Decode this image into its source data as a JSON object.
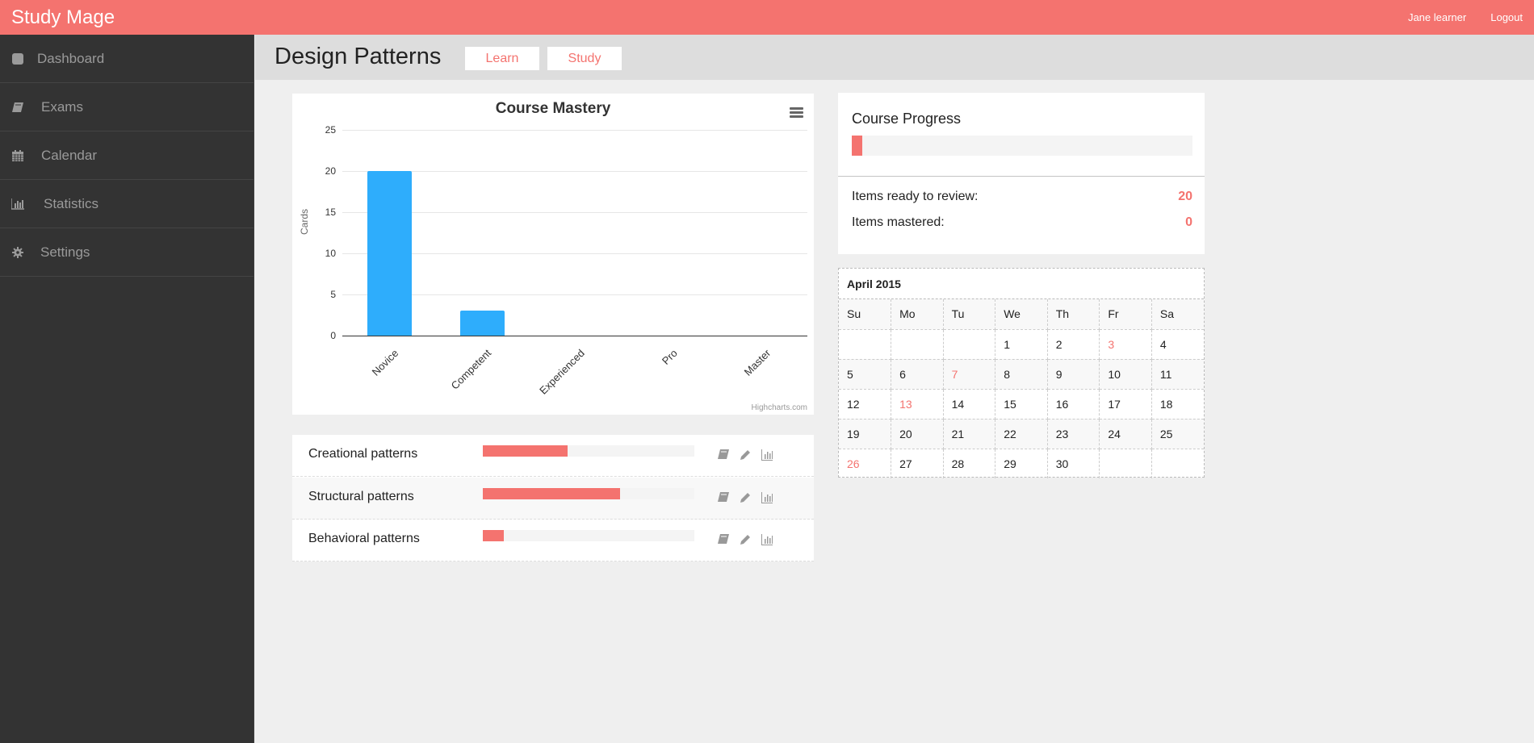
{
  "app": {
    "title": "Study Mage"
  },
  "topnav": {
    "user": "Jane learner",
    "logout": "Logout"
  },
  "sidebar": {
    "items": [
      {
        "label": "Dashboard",
        "icon": "dashboard-icon"
      },
      {
        "label": "Exams",
        "icon": "book-icon"
      },
      {
        "label": "Calendar",
        "icon": "calendar-icon"
      },
      {
        "label": "Statistics",
        "icon": "bar-chart-icon"
      },
      {
        "label": "Settings",
        "icon": "gear-icon"
      }
    ]
  },
  "header": {
    "title": "Design Patterns",
    "learn_label": "Learn",
    "study_label": "Study"
  },
  "chart_data": {
    "type": "bar",
    "title": "Course Mastery",
    "categories": [
      "Novice",
      "Competent",
      "Experienced",
      "Pro",
      "Master"
    ],
    "values": [
      20,
      3,
      0,
      0,
      0
    ],
    "xlabel": "",
    "ylabel": "Cards",
    "ylim": [
      0,
      25
    ],
    "yticks": [
      0,
      5,
      10,
      15,
      20,
      25
    ],
    "grid": true,
    "legend": "none",
    "color": "#2eadfc",
    "credit": "Highcharts.com"
  },
  "topics": [
    {
      "name": "Creational patterns",
      "progress": 40
    },
    {
      "name": "Structural patterns",
      "progress": 65
    },
    {
      "name": "Behavioral patterns",
      "progress": 10
    }
  ],
  "progress": {
    "title": "Course Progress",
    "percent": 3,
    "ready_label": "Items ready to review:",
    "ready_value": "20",
    "mastered_label": "Items mastered:",
    "mastered_value": "0"
  },
  "calendar": {
    "title": "April 2015",
    "weekdays": [
      "Su",
      "Mo",
      "Tu",
      "We",
      "Th",
      "Fr",
      "Sa"
    ],
    "weeks": [
      [
        "",
        "",
        "",
        "1",
        "2",
        "3",
        "4"
      ],
      [
        "5",
        "6",
        "7",
        "8",
        "9",
        "10",
        "11"
      ],
      [
        "12",
        "13",
        "14",
        "15",
        "16",
        "17",
        "18"
      ],
      [
        "19",
        "20",
        "21",
        "22",
        "23",
        "24",
        "25"
      ],
      [
        "26",
        "27",
        "28",
        "29",
        "30",
        "",
        ""
      ]
    ],
    "highlighted": [
      "3",
      "7",
      "13",
      "26"
    ],
    "highlight_color": "#f4736f"
  },
  "colors": {
    "accent": "#f4736f",
    "sidebar": "#333333",
    "bar": "#2eadfc"
  }
}
